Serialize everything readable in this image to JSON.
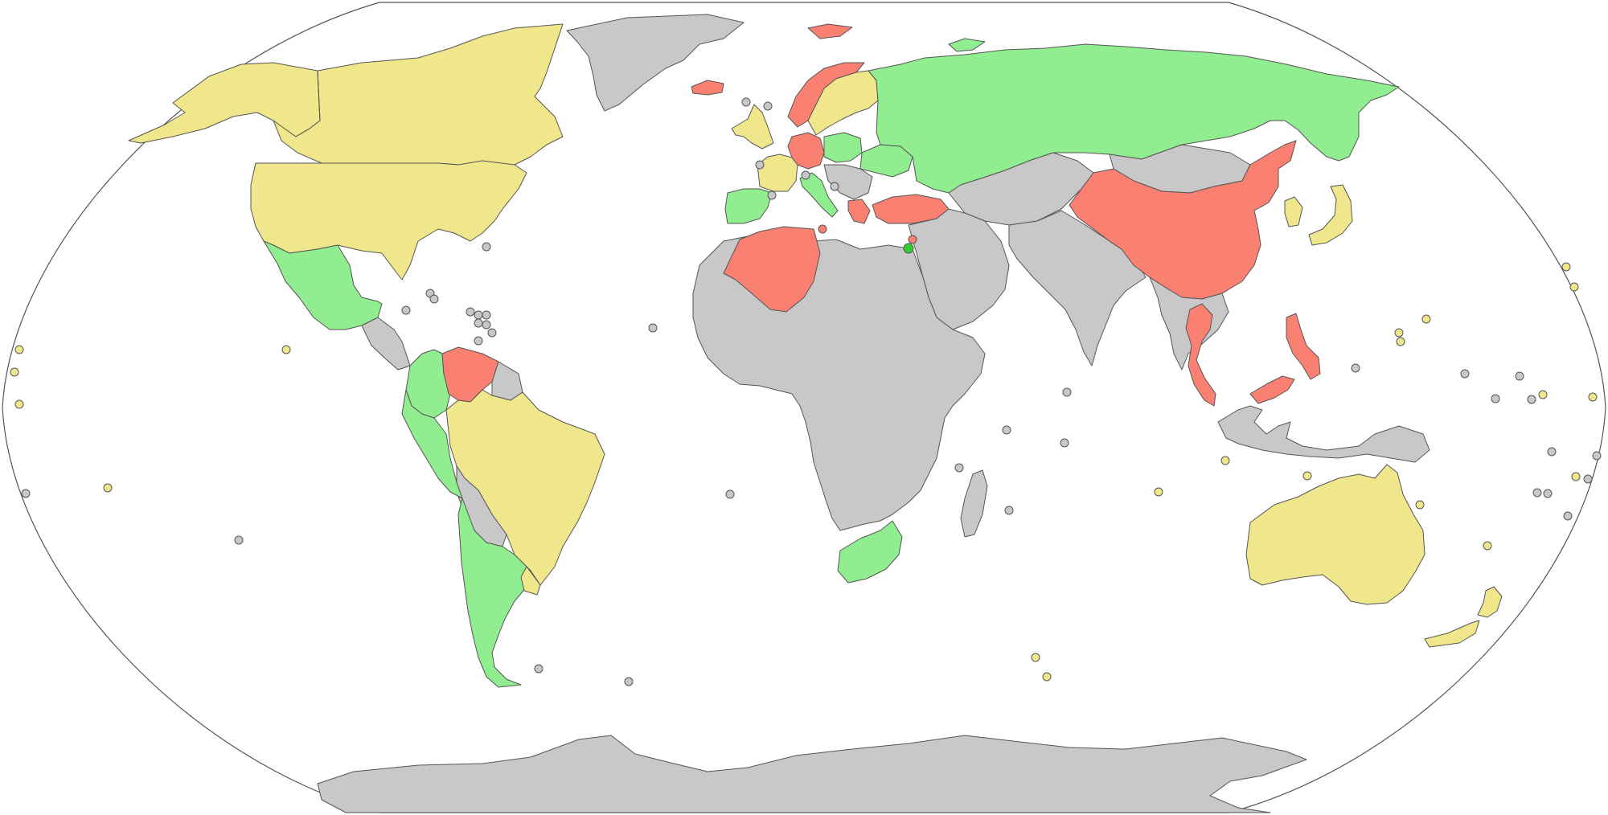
{
  "map": {
    "projection": "robinson",
    "colors": {
      "ocean": "#ffffff",
      "no_data": "#c8c8c8",
      "green": "#90ee90",
      "bright_green": "#32cd32",
      "yellow": "#f0e68c",
      "red": "#fa8072",
      "border": "#555555"
    },
    "regions": [
      {
        "name": "canada",
        "category": "yellow"
      },
      {
        "name": "alaska",
        "category": "yellow"
      },
      {
        "name": "usa",
        "category": "yellow"
      },
      {
        "name": "greenland",
        "category": "no_data"
      },
      {
        "name": "mexico",
        "category": "green"
      },
      {
        "name": "central-america",
        "category": "no_data"
      },
      {
        "name": "colombia",
        "category": "green"
      },
      {
        "name": "venezuela",
        "category": "red"
      },
      {
        "name": "guianas",
        "category": "no_data"
      },
      {
        "name": "brazil",
        "category": "yellow"
      },
      {
        "name": "peru",
        "category": "green"
      },
      {
        "name": "bolivia-paraguay",
        "category": "no_data"
      },
      {
        "name": "argentina-chile",
        "category": "green"
      },
      {
        "name": "uruguay",
        "category": "yellow"
      },
      {
        "name": "iceland",
        "category": "red"
      },
      {
        "name": "uk-ireland",
        "category": "yellow"
      },
      {
        "name": "norway",
        "category": "red"
      },
      {
        "name": "sweden-finland",
        "category": "yellow"
      },
      {
        "name": "iberia",
        "category": "green"
      },
      {
        "name": "france",
        "category": "yellow"
      },
      {
        "name": "germany",
        "category": "red"
      },
      {
        "name": "poland",
        "category": "green"
      },
      {
        "name": "italy",
        "category": "green"
      },
      {
        "name": "balkans",
        "category": "no_data"
      },
      {
        "name": "greece",
        "category": "red"
      },
      {
        "name": "turkey",
        "category": "red"
      },
      {
        "name": "ukraine",
        "category": "green"
      },
      {
        "name": "russia",
        "category": "green"
      },
      {
        "name": "china",
        "category": "red"
      },
      {
        "name": "mongolia",
        "category": "no_data"
      },
      {
        "name": "central-asia",
        "category": "no_data"
      },
      {
        "name": "middle-east",
        "category": "no_data"
      },
      {
        "name": "india",
        "category": "no_data"
      },
      {
        "name": "southeast-asia",
        "category": "no_data"
      },
      {
        "name": "thailand",
        "category": "red"
      },
      {
        "name": "malaysia",
        "category": "red"
      },
      {
        "name": "philippines",
        "category": "red"
      },
      {
        "name": "indonesia",
        "category": "no_data"
      },
      {
        "name": "japan",
        "category": "yellow"
      },
      {
        "name": "korea",
        "category": "yellow"
      },
      {
        "name": "israel",
        "category": "bright_green"
      },
      {
        "name": "algeria",
        "category": "red"
      },
      {
        "name": "africa",
        "category": "no_data"
      },
      {
        "name": "south-africa",
        "category": "green"
      },
      {
        "name": "madagascar",
        "category": "no_data"
      },
      {
        "name": "australia",
        "category": "yellow"
      },
      {
        "name": "new-zealand",
        "category": "yellow"
      },
      {
        "name": "antarctica",
        "category": "no_data"
      },
      {
        "name": "svalbard",
        "category": "red"
      },
      {
        "name": "novaya-zemlya",
        "category": "green"
      }
    ]
  }
}
